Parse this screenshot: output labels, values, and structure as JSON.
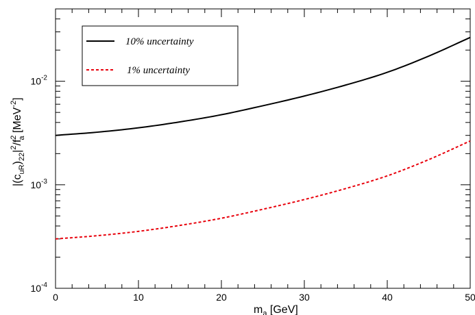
{
  "chart_data": {
    "type": "line",
    "xlabel": {
      "main": "m",
      "sub": "a",
      "rest": " [GeV]"
    },
    "ylabel": {
      "p1": "|(c",
      "s1": "uR",
      "p2": ")",
      "s2": "22",
      "p3": "|",
      "sup1": "2",
      "p4": "/f",
      "sup2": "2",
      "s3": "a",
      "p5": "  [MeV",
      "sup3": "-2",
      "p6": "]"
    },
    "xlim": [
      0,
      50
    ],
    "ylim": [
      0.0001,
      0.05
    ],
    "yscale": "log",
    "x_ticks": [
      {
        "value": 0,
        "label": "0"
      },
      {
        "value": 10,
        "label": "10"
      },
      {
        "value": 20,
        "label": "20"
      },
      {
        "value": 30,
        "label": "30"
      },
      {
        "value": 40,
        "label": "40"
      },
      {
        "value": 50,
        "label": "50"
      }
    ],
    "y_ticks": [
      {
        "value": 0.0001,
        "base": "10",
        "exp": "-4"
      },
      {
        "value": 0.001,
        "base": "10",
        "exp": "-3"
      },
      {
        "value": 0.01,
        "base": "10",
        "exp": "-2"
      }
    ],
    "grid": false,
    "legend_position": "top-left",
    "series": [
      {
        "name": "10% uncertainty",
        "color": "#000000",
        "dash": "solid",
        "x": [
          0,
          5,
          10,
          15,
          20,
          25,
          30,
          35,
          40,
          45,
          50
        ],
        "y": [
          0.003,
          0.00322,
          0.00355,
          0.00405,
          0.00475,
          0.0058,
          0.0072,
          0.0092,
          0.0122,
          0.0175,
          0.0265
        ]
      },
      {
        "name": "1% uncertainty",
        "color": "#e8000b",
        "dash": "dashed",
        "x": [
          0,
          5,
          10,
          15,
          20,
          25,
          30,
          35,
          40,
          45,
          50
        ],
        "y": [
          0.0003,
          0.000322,
          0.000355,
          0.000405,
          0.000475,
          0.00058,
          0.00072,
          0.00092,
          0.00122,
          0.00175,
          0.00265
        ]
      }
    ]
  }
}
